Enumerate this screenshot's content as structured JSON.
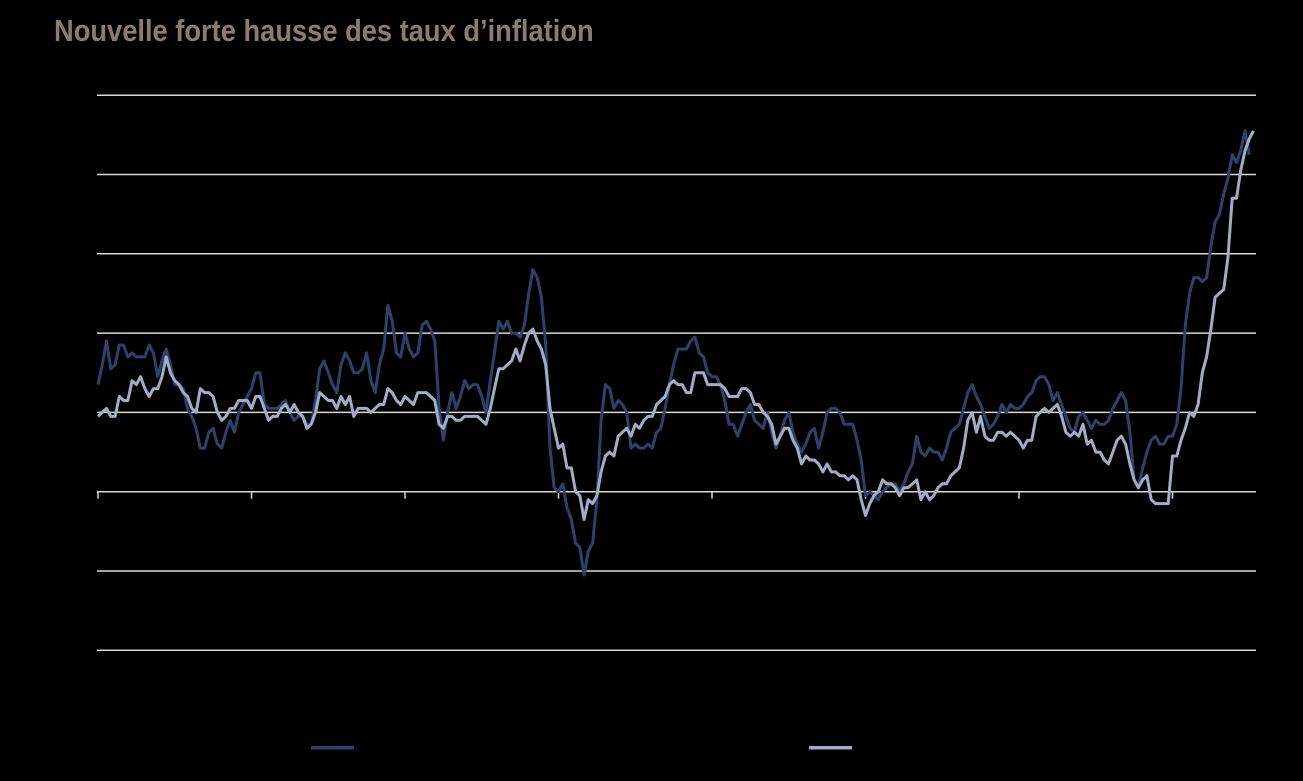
{
  "title": "Nouvelle forte hausse des taux d’inflation",
  "colors": {
    "background": "#000000",
    "title": "#8a7d6d",
    "grid": "#d9d7d2",
    "series_dark": "#2e4269",
    "series_light": "#a2acc4"
  },
  "legend": {
    "items": [
      {
        "swatch_color": "#2e4269",
        "label": ""
      },
      {
        "swatch_color": "#a2acc4",
        "label": ""
      }
    ]
  },
  "chart_data": {
    "type": "line",
    "title": "Nouvelle forte hausse des taux d’inflation",
    "frequency": "monthly",
    "x_start": {
      "year": 2000,
      "month": 1
    },
    "x_tick_years": [
      2000,
      2003,
      2006,
      2009,
      2012,
      2015,
      2018,
      2021
    ],
    "ylim": [
      -4,
      10
    ],
    "y_gridlines": [
      10,
      8,
      6,
      4,
      2,
      0,
      -2,
      -4
    ],
    "axis_zero_line_has_ticks": true,
    "legend_position": "bottom",
    "grid": true,
    "series": [
      {
        "name": "series-dark-navy",
        "color": "#2e4269",
        "values": [
          2.7,
          3.2,
          3.8,
          3.1,
          3.2,
          3.7,
          3.7,
          3.4,
          3.5,
          3.4,
          3.4,
          3.4,
          3.7,
          3.5,
          2.9,
          3.3,
          3.6,
          3.2,
          2.7,
          2.7,
          2.6,
          2.1,
          1.9,
          1.6,
          1.1,
          1.1,
          1.5,
          1.6,
          1.2,
          1.1,
          1.5,
          1.8,
          1.5,
          2.0,
          2.2,
          2.4,
          2.6,
          3.0,
          3.0,
          2.2,
          2.1,
          2.1,
          2.1,
          2.2,
          2.3,
          2.0,
          1.8,
          1.9,
          1.9,
          1.7,
          1.7,
          2.3,
          3.1,
          3.3,
          3.0,
          2.7,
          2.5,
          3.2,
          3.5,
          3.3,
          3.0,
          3.0,
          3.1,
          3.5,
          2.8,
          2.5,
          3.2,
          3.6,
          4.7,
          4.3,
          3.5,
          3.4,
          4.0,
          3.6,
          3.4,
          3.5,
          4.2,
          4.3,
          4.1,
          3.8,
          2.1,
          1.3,
          2.0,
          2.5,
          2.1,
          2.4,
          2.8,
          2.6,
          2.7,
          2.7,
          2.4,
          2.0,
          2.8,
          3.5,
          4.3,
          4.1,
          4.3,
          4.0,
          4.0,
          3.9,
          4.2,
          5.0,
          5.6,
          5.4,
          4.9,
          3.7,
          1.1,
          0.1,
          0.0,
          0.2,
          -0.4,
          -0.7,
          -1.3,
          -1.4,
          -2.1,
          -1.5,
          -1.3,
          -0.2,
          1.8,
          2.7,
          2.6,
          2.1,
          2.3,
          2.2,
          2.0,
          1.1,
          1.2,
          1.1,
          1.1,
          1.2,
          1.1,
          1.5,
          1.6,
          2.1,
          2.7,
          3.2,
          3.6,
          3.6,
          3.6,
          3.8,
          3.9,
          3.5,
          3.4,
          3.0,
          2.9,
          2.9,
          2.7,
          2.3,
          1.7,
          1.7,
          1.4,
          1.7,
          2.0,
          2.2,
          1.8,
          1.7,
          1.6,
          2.0,
          1.5,
          1.1,
          1.4,
          1.8,
          2.0,
          1.5,
          1.2,
          1.0,
          1.2,
          1.5,
          1.6,
          1.1,
          1.5,
          2.0,
          2.1,
          2.1,
          2.0,
          1.7,
          1.7,
          1.7,
          1.3,
          0.8,
          -0.1,
          0.0,
          -0.1,
          -0.2,
          0.0,
          0.1,
          0.2,
          0.2,
          0.0,
          0.2,
          0.5,
          0.7,
          1.4,
          1.0,
          0.9,
          1.1,
          1.0,
          1.0,
          0.8,
          1.1,
          1.5,
          1.6,
          1.7,
          2.1,
          2.5,
          2.7,
          2.4,
          2.2,
          1.9,
          1.6,
          1.7,
          1.9,
          2.2,
          2.0,
          2.2,
          2.1,
          2.1,
          2.2,
          2.4,
          2.5,
          2.8,
          2.9,
          2.9,
          2.7,
          2.3,
          2.5,
          2.2,
          1.9,
          1.6,
          1.5,
          1.9,
          2.0,
          1.8,
          1.6,
          1.8,
          1.7,
          1.7,
          1.8,
          2.1,
          2.3,
          2.5,
          2.3,
          1.5,
          0.3,
          0.1,
          0.6,
          1.0,
          1.3,
          1.4,
          1.2,
          1.2,
          1.4,
          1.4,
          1.7,
          2.6,
          4.2,
          5.0,
          5.4,
          5.4,
          5.3,
          5.4,
          6.2,
          6.8,
          7.0,
          7.5,
          7.9,
          8.5,
          8.3,
          8.6,
          9.1,
          8.5
        ]
      },
      {
        "name": "series-light-blue",
        "color": "#a2acc4",
        "values": [
          1.9,
          2.0,
          2.1,
          1.9,
          1.9,
          2.4,
          2.3,
          2.3,
          2.8,
          2.7,
          2.9,
          2.6,
          2.4,
          2.6,
          2.6,
          2.9,
          3.4,
          3.0,
          2.8,
          2.7,
          2.5,
          2.4,
          2.1,
          2.0,
          2.6,
          2.5,
          2.5,
          2.4,
          2.0,
          1.8,
          1.9,
          2.1,
          2.1,
          2.3,
          2.3,
          2.3,
          2.1,
          2.4,
          2.4,
          2.1,
          1.8,
          1.9,
          1.9,
          2.1,
          2.2,
          2.0,
          2.2,
          2.0,
          1.9,
          1.6,
          1.7,
          2.0,
          2.5,
          2.4,
          2.3,
          2.3,
          2.1,
          2.4,
          2.2,
          2.4,
          1.9,
          2.1,
          2.1,
          2.1,
          2.0,
          2.1,
          2.2,
          2.2,
          2.6,
          2.5,
          2.3,
          2.2,
          2.4,
          2.3,
          2.2,
          2.5,
          2.5,
          2.5,
          2.4,
          2.3,
          1.7,
          1.6,
          1.9,
          1.9,
          1.8,
          1.8,
          1.9,
          1.9,
          1.9,
          1.9,
          1.8,
          1.7,
          2.1,
          2.6,
          3.1,
          3.1,
          3.2,
          3.3,
          3.6,
          3.3,
          3.7,
          4.0,
          4.1,
          3.8,
          3.6,
          3.2,
          2.1,
          1.6,
          1.1,
          1.2,
          0.6,
          0.6,
          0.0,
          -0.1,
          -0.7,
          -0.2,
          -0.3,
          -0.1,
          0.5,
          0.9,
          1.0,
          0.9,
          1.4,
          1.5,
          1.6,
          1.4,
          1.7,
          1.6,
          1.8,
          1.9,
          1.9,
          2.2,
          2.3,
          2.4,
          2.7,
          2.8,
          2.7,
          2.7,
          2.5,
          2.5,
          3.0,
          3.0,
          3.0,
          2.7,
          2.7,
          2.7,
          2.7,
          2.6,
          2.4,
          2.4,
          2.4,
          2.6,
          2.6,
          2.5,
          2.2,
          2.2,
          2.0,
          1.9,
          1.7,
          1.2,
          1.4,
          1.6,
          1.6,
          1.3,
          1.1,
          0.7,
          0.9,
          0.8,
          0.8,
          0.7,
          0.5,
          0.7,
          0.5,
          0.5,
          0.4,
          0.4,
          0.3,
          0.4,
          0.3,
          -0.2,
          -0.6,
          -0.3,
          -0.1,
          0.0,
          0.3,
          0.2,
          0.2,
          0.1,
          -0.1,
          0.1,
          0.1,
          0.2,
          0.3,
          -0.2,
          0.0,
          -0.2,
          -0.1,
          0.1,
          0.2,
          0.2,
          0.4,
          0.5,
          0.6,
          1.1,
          1.8,
          2.0,
          1.5,
          1.9,
          1.4,
          1.3,
          1.3,
          1.5,
          1.5,
          1.4,
          1.5,
          1.4,
          1.3,
          1.1,
          1.3,
          1.3,
          1.9,
          2.0,
          2.1,
          2.0,
          2.1,
          2.2,
          1.9,
          1.5,
          1.4,
          1.5,
          1.4,
          1.7,
          1.2,
          1.3,
          1.0,
          1.0,
          0.8,
          0.7,
          1.0,
          1.3,
          1.4,
          1.2,
          0.7,
          0.3,
          0.1,
          0.3,
          0.4,
          -0.2,
          -0.3,
          -0.3,
          -0.3,
          -0.3,
          0.9,
          0.9,
          1.3,
          1.6,
          2.0,
          1.9,
          2.2,
          3.0,
          3.4,
          4.1,
          4.9,
          5.0,
          5.1,
          5.9,
          7.4,
          7.4,
          8.1,
          8.6,
          8.9,
          9.1
        ]
      }
    ]
  }
}
